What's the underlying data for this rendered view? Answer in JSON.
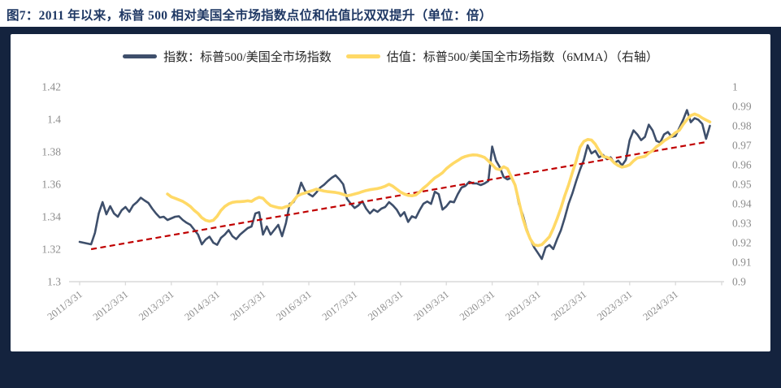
{
  "figure": {
    "title": "图7：2011 年以来，标普 500 相对美国全市场指数点位和估值比双双提升（单位：倍）"
  },
  "legend": [
    {
      "label": "指数：标普500/美国全市场指数",
      "color": "#3E4F6B"
    },
    {
      "label": "估值：标普500/美国全市场指数（6MMA）（右轴）",
      "color": "#FFD966"
    }
  ],
  "colors": {
    "title_navy": "#1F3864",
    "frame_navy": "#14233E",
    "index_line": "#3E4F6B",
    "valuation_line": "#FFD966",
    "trendline_red": "#C00000",
    "axis_line": "#D9D9D9",
    "tick_label": "#8C8C8C"
  },
  "chart_data": {
    "type": "line",
    "title": "标普500相对美国全市场指数点位和估值比（单位：倍）",
    "x_start": "2011/3",
    "x_interval": "monthly",
    "months_per_tick": 12,
    "x_tick_labels": [
      "2011/3/31",
      "2012/3/31",
      "2013/3/31",
      "2014/3/31",
      "2015/3/31",
      "2016/3/31",
      "2017/3/31",
      "2018/3/31",
      "2019/3/31",
      "2020/3/31",
      "2021/3/31",
      "2022/3/31",
      "2023/3/31",
      "2024/3/31"
    ],
    "left_axis": {
      "min": 1.3,
      "max": 1.42,
      "tick_labels": [
        "1.42",
        "1.4",
        "1.38",
        "1.36",
        "1.34",
        "1.32",
        "1.3"
      ]
    },
    "right_axis": {
      "min": 0.9,
      "max": 1.0,
      "tick_labels": [
        "1",
        "0.99",
        "0.98",
        "0.97",
        "0.96",
        "0.95",
        "0.94",
        "0.93",
        "0.92",
        "0.91",
        "0.9"
      ]
    },
    "grid": false,
    "legend_position": "top-center",
    "series": [
      {
        "name": "指数：标普500/美国全市场指数",
        "axis": "left",
        "color": "#3E4F6B",
        "width": 2.6,
        "start_offset": 0,
        "values": [
          1.3245,
          1.324,
          1.3235,
          1.323,
          1.33,
          1.342,
          1.349,
          1.3415,
          1.3465,
          1.342,
          1.34,
          1.344,
          1.346,
          1.343,
          1.347,
          1.349,
          1.3517,
          1.35,
          1.3485,
          1.345,
          1.342,
          1.3395,
          1.34,
          1.338,
          1.339,
          1.34,
          1.3403,
          1.338,
          1.3363,
          1.335,
          1.332,
          1.329,
          1.323,
          1.326,
          1.3277,
          1.324,
          1.3227,
          1.327,
          1.329,
          1.3318,
          1.328,
          1.3262,
          1.329,
          1.331,
          1.333,
          1.334,
          1.342,
          1.3428,
          1.329,
          1.334,
          1.329,
          1.332,
          1.335,
          1.328,
          1.336,
          1.348,
          1.349,
          1.353,
          1.361,
          1.356,
          1.354,
          1.3525,
          1.355,
          1.358,
          1.3597,
          1.362,
          1.364,
          1.3655,
          1.363,
          1.36,
          1.351,
          1.348,
          1.3454,
          1.347,
          1.3495,
          1.345,
          1.342,
          1.3444,
          1.343,
          1.345,
          1.346,
          1.349,
          1.347,
          1.3444,
          1.3403,
          1.3428,
          1.3368,
          1.3403,
          1.3393,
          1.344,
          1.348,
          1.3494,
          1.3479,
          1.3554,
          1.3539,
          1.3444,
          1.3464,
          1.3494,
          1.3489,
          1.3539,
          1.358,
          1.359,
          1.3615,
          1.3605,
          1.3605,
          1.3595,
          1.3605,
          1.362,
          1.3832,
          1.3746,
          1.3705,
          1.3645,
          1.363,
          1.364,
          1.3595,
          1.3479,
          1.3413,
          1.3327,
          1.3262,
          1.3211,
          1.3176,
          1.314,
          1.3211,
          1.3226,
          1.3201,
          1.3262,
          1.3317,
          1.3393,
          1.3479,
          1.3544,
          1.362,
          1.369,
          1.375,
          1.384,
          1.379,
          1.3806,
          1.3766,
          1.3781,
          1.3756,
          1.3766,
          1.373,
          1.3746,
          1.3716,
          1.375,
          1.3872,
          1.3932,
          1.3907,
          1.3872,
          1.3892,
          1.3967,
          1.3932,
          1.3867,
          1.3857,
          1.3907,
          1.3922,
          1.3892,
          1.3897,
          1.3947,
          1.3997,
          1.4057,
          1.3982,
          1.4007,
          1.3997,
          1.3972,
          1.388,
          1.396
        ]
      },
      {
        "name": "估值：标普500/美国全市场指数（6MMA）",
        "axis": "right",
        "color": "#FFD966",
        "width": 3.6,
        "start_offset": 23,
        "values": [
          0.945,
          0.9435,
          0.9428,
          0.942,
          0.9412,
          0.94,
          0.9386,
          0.9366,
          0.935,
          0.9328,
          0.9315,
          0.931,
          0.9315,
          0.9336,
          0.9366,
          0.9386,
          0.9399,
          0.9407,
          0.941,
          0.9411,
          0.9412,
          0.9415,
          0.9412,
          0.9425,
          0.9433,
          0.9428,
          0.9407,
          0.9391,
          0.9385,
          0.938,
          0.9378,
          0.9385,
          0.9391,
          0.9415,
          0.944,
          0.9449,
          0.9455,
          0.9462,
          0.9468,
          0.9475,
          0.947,
          0.9465,
          0.9462,
          0.946,
          0.9458,
          0.9454,
          0.9448,
          0.9441,
          0.9445,
          0.945,
          0.9455,
          0.9462,
          0.9468,
          0.9472,
          0.9475,
          0.9478,
          0.9483,
          0.949,
          0.95,
          0.949,
          0.9475,
          0.946,
          0.945,
          0.9443,
          0.9441,
          0.9445,
          0.946,
          0.948,
          0.9496,
          0.9515,
          0.9533,
          0.9545,
          0.9559,
          0.958,
          0.9596,
          0.961,
          0.9622,
          0.9635,
          0.9643,
          0.9648,
          0.9651,
          0.965,
          0.9645,
          0.9638,
          0.962,
          0.9601,
          0.958,
          0.9575,
          0.959,
          0.958,
          0.9538,
          0.9496,
          0.9412,
          0.9328,
          0.9265,
          0.9218,
          0.9189,
          0.9185,
          0.919,
          0.921,
          0.9231,
          0.9273,
          0.9323,
          0.9378,
          0.9441,
          0.9496,
          0.956,
          0.962,
          0.969,
          0.972,
          0.973,
          0.9727,
          0.9706,
          0.9672,
          0.9643,
          0.9639,
          0.963,
          0.9609,
          0.9596,
          0.9588,
          0.9592,
          0.96,
          0.962,
          0.9635,
          0.9639,
          0.9643,
          0.966,
          0.9672,
          0.9693,
          0.9706,
          0.9723,
          0.9735,
          0.9748,
          0.9765,
          0.9777,
          0.9807,
          0.9832,
          0.9853,
          0.9861,
          0.9853,
          0.984,
          0.983,
          0.982
        ]
      }
    ],
    "trendline": {
      "style": "dashed",
      "color": "#C00000",
      "axis": "left",
      "start": {
        "month_index": 3,
        "value": 1.32
      },
      "end": {
        "month_index": 164,
        "value": 1.386
      }
    }
  }
}
